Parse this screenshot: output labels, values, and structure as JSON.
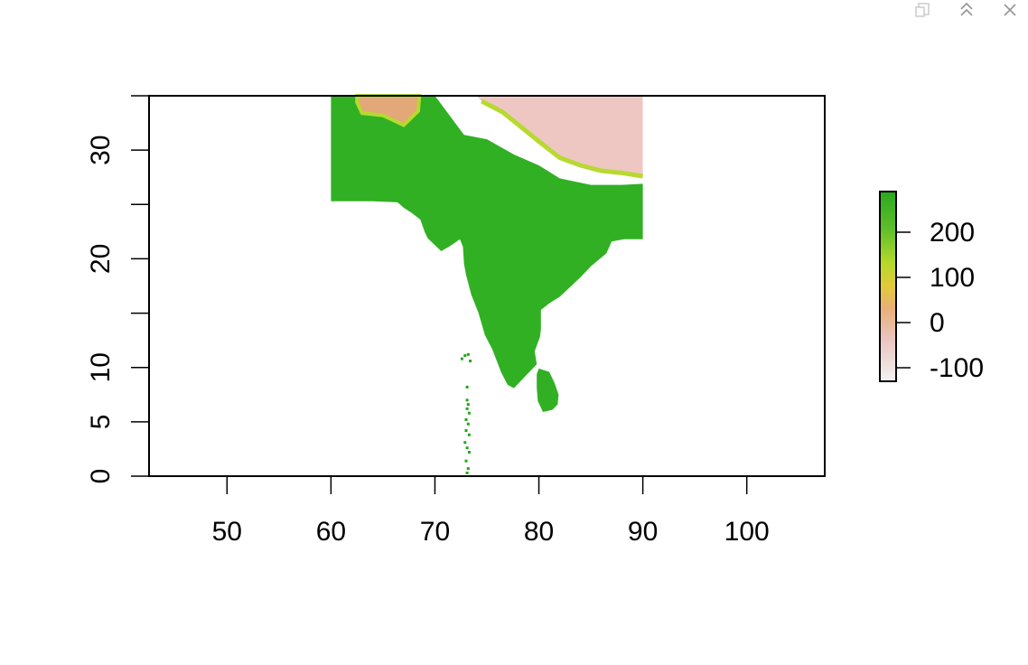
{
  "window_controls": {
    "items": [
      {
        "name": "popout-icon"
      },
      {
        "name": "collapse-icon"
      },
      {
        "name": "close-icon"
      }
    ]
  },
  "chart_data": {
    "type": "heatmap",
    "title": "",
    "xlabel": "",
    "ylabel": "",
    "xlim": [
      42.5,
      107.5
    ],
    "ylim": [
      0,
      35
    ],
    "x_ticks": [
      50,
      60,
      70,
      80,
      90,
      100
    ],
    "x_tick_labels": [
      "50",
      "60",
      "70",
      "80",
      "90",
      "100"
    ],
    "y_ticks": [
      0,
      5,
      10,
      15,
      20,
      25,
      30,
      35
    ],
    "y_tick_labels": [
      "0",
      "5",
      "10",
      "",
      "20",
      "",
      "30",
      ""
    ],
    "raster_extent": {
      "xmin": 60,
      "xmax": 90,
      "ymin": 0,
      "ymax": 35
    },
    "legend": {
      "position": "right",
      "range": [
        -130,
        290
      ],
      "ticks": [
        -100,
        0,
        100,
        200
      ],
      "tick_labels": [
        "-100",
        "0",
        "100",
        "200"
      ],
      "colors": [
        "#f2f2f2",
        "#eac5c0",
        "#e8b07a",
        "#e2c83a",
        "#b6d92a",
        "#5fbf2a",
        "#2aa81f"
      ]
    },
    "colors": {
      "lowland": "#31b023",
      "lowland_dark": "#26a51b",
      "foothill": "#b7d930",
      "plateau": "#e2a877",
      "high_mountain": "#eec7c3"
    },
    "regions": [
      {
        "name": "mainland",
        "value": 250,
        "color": "#31b023",
        "coords": [
          [
            60,
            35
          ],
          [
            70,
            35
          ],
          [
            72.8,
            31.4
          ],
          [
            75,
            31
          ],
          [
            77.6,
            29.6
          ],
          [
            80,
            28.6
          ],
          [
            82,
            27.4
          ],
          [
            85,
            26.8
          ],
          [
            88,
            26.8
          ],
          [
            90,
            26.9
          ],
          [
            90,
            21.8
          ],
          [
            89,
            21.8
          ],
          [
            88.2,
            21.8
          ],
          [
            87,
            21.6
          ],
          [
            86.5,
            20.5
          ],
          [
            85,
            19.3
          ],
          [
            84,
            18.3
          ],
          [
            82,
            16.5
          ],
          [
            81,
            15.9
          ],
          [
            80.2,
            15.3
          ],
          [
            80.2,
            13.5
          ],
          [
            80.1,
            12.8
          ],
          [
            79.6,
            11.5
          ],
          [
            79.8,
            10.3
          ],
          [
            79,
            9.5
          ],
          [
            78.3,
            8.8
          ],
          [
            77.6,
            8.1
          ],
          [
            77,
            8.4
          ],
          [
            76.4,
            9.5
          ],
          [
            75.5,
            11.7
          ],
          [
            74.8,
            13
          ],
          [
            74.2,
            15
          ],
          [
            73.5,
            16.7
          ],
          [
            73,
            18.5
          ],
          [
            72.8,
            19.5
          ],
          [
            72.7,
            21.1
          ],
          [
            72.4,
            21.8
          ],
          [
            71.5,
            21.2
          ],
          [
            70.6,
            20.7
          ],
          [
            69.3,
            21.9
          ],
          [
            69,
            22.5
          ],
          [
            68.6,
            23.6
          ],
          [
            67.8,
            24.2
          ],
          [
            67,
            24.7
          ],
          [
            66.4,
            25.2
          ],
          [
            64,
            25.3
          ],
          [
            60,
            25.3
          ]
        ]
      },
      {
        "name": "west-plateau",
        "value": 0,
        "color": "#e2a877",
        "coords": [
          [
            62.5,
            35
          ],
          [
            68.5,
            35
          ],
          [
            68.4,
            33.6
          ],
          [
            67,
            32.3
          ],
          [
            65,
            33.2
          ],
          [
            63,
            33.4
          ],
          [
            62.5,
            34.4
          ]
        ]
      },
      {
        "name": "himalaya",
        "value": -100,
        "color": "#eec7c3",
        "coords": [
          [
            74,
            35
          ],
          [
            90,
            35
          ],
          [
            90,
            27.6
          ],
          [
            88,
            27.9
          ],
          [
            86,
            28.1
          ],
          [
            84,
            28.6
          ],
          [
            82,
            29.3
          ],
          [
            80,
            30.8
          ],
          [
            78.2,
            32.2
          ],
          [
            76.5,
            33.5
          ],
          [
            74.5,
            34.5
          ]
        ]
      },
      {
        "name": "sri-lanka",
        "value": 200,
        "color": "#31b023",
        "coords": [
          [
            80,
            9.9
          ],
          [
            81,
            9.6
          ],
          [
            81.5,
            8.6
          ],
          [
            81.9,
            7.5
          ],
          [
            81.8,
            6.6
          ],
          [
            81.3,
            6.1
          ],
          [
            80.4,
            5.9
          ],
          [
            79.9,
            6.9
          ],
          [
            79.8,
            8.1
          ],
          [
            79.8,
            9.4
          ]
        ]
      }
    ],
    "islands": [
      [
        72.9,
        11.1
      ],
      [
        73.2,
        11.2
      ],
      [
        72.6,
        10.8
      ],
      [
        73.4,
        10.6
      ],
      [
        73.1,
        8.2
      ],
      [
        73.1,
        7.0
      ],
      [
        73.2,
        6.6
      ],
      [
        73.1,
        6.2
      ],
      [
        73.3,
        5.8
      ],
      [
        73.0,
        5.2
      ],
      [
        73.2,
        4.8
      ],
      [
        73.0,
        4.2
      ],
      [
        73.3,
        3.8
      ],
      [
        72.9,
        3.1
      ],
      [
        73.1,
        2.6
      ],
      [
        73.3,
        2.2
      ],
      [
        73.0,
        1.4
      ],
      [
        73.2,
        0.7
      ],
      [
        73.1,
        0.3
      ]
    ]
  }
}
